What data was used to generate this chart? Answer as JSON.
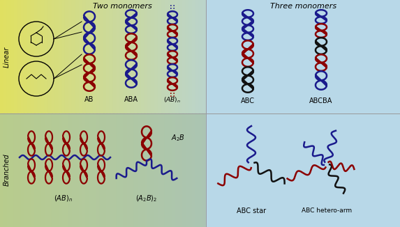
{
  "title_two": "Two monomers",
  "title_three": "Three monomers",
  "label_linear": "Linear",
  "label_branched": "Branched",
  "color_blue": "#1a1a8c",
  "color_red": "#8b0000",
  "color_black": "#111111",
  "color_darkred": "#7b1010",
  "figsize": [
    5.73,
    3.26
  ],
  "dpi": 100
}
